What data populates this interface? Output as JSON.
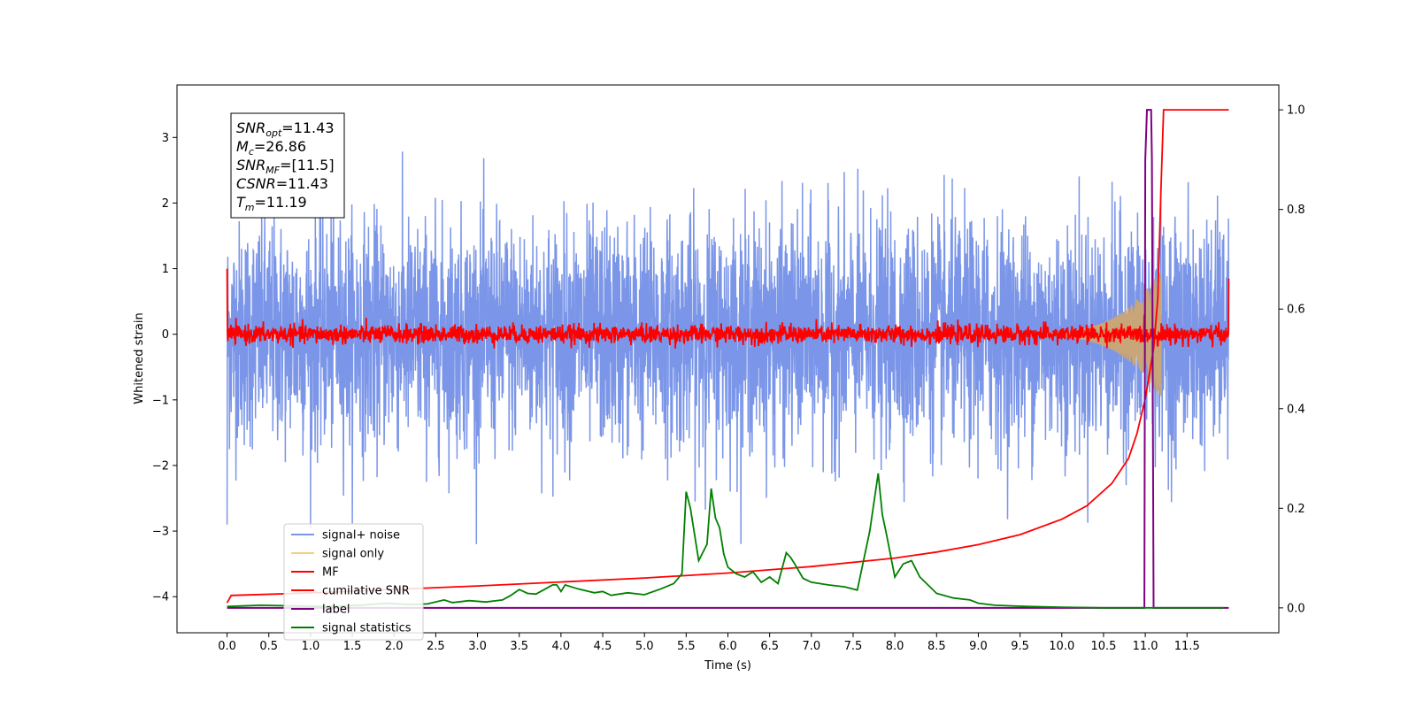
{
  "chart_data": {
    "type": "line",
    "xlabel": "Time (s)",
    "ylabel": "Whitened strain",
    "xlim": [
      -0.6,
      12.6
    ],
    "ylim": [
      -4.55,
      3.8
    ],
    "y2lim": [
      -0.05,
      1.05
    ],
    "x_ticks": [
      "0.0",
      "0.5",
      "1.0",
      "1.5",
      "2.0",
      "2.5",
      "3.0",
      "3.5",
      "4.0",
      "4.5",
      "5.0",
      "5.5",
      "6.0",
      "6.5",
      "7.0",
      "7.5",
      "8.0",
      "8.5",
      "9.0",
      "9.5",
      "10.0",
      "10.5",
      "11.0",
      "11.5"
    ],
    "y_ticks": [
      "3",
      "2",
      "1",
      "0",
      "−1",
      "−2",
      "−3",
      "−4"
    ],
    "y2_ticks": [
      "1.0",
      "0.8",
      "0.6",
      "0.4",
      "0.2",
      "0.0"
    ],
    "grid": false,
    "legend_position": "lower-left",
    "annotation": {
      "lines": [
        {
          "main": "SNR",
          "sub": "opt",
          "rest": "=11.43"
        },
        {
          "main": "M",
          "sub": "c",
          "rest": "=26.86"
        },
        {
          "main": "SNR",
          "sub": "MF",
          "rest": "=[11.5]"
        },
        {
          "main": "CSNR",
          "sub": "",
          "rest": "=11.43"
        },
        {
          "main": "T",
          "sub": "m",
          "rest": "=11.19"
        }
      ]
    },
    "series": [
      {
        "name": "signal+ noise",
        "color": "#7b96e8",
        "axis": "left",
        "x_range": [
          0.0,
          12.0
        ],
        "noise_std": 0.85
      },
      {
        "name": "signal only",
        "color": "#f5d07a",
        "axis": "left",
        "x_range": [
          0.0,
          12.0
        ],
        "envelope_peak_time": 11.19,
        "envelope_peak": 0.95
      },
      {
        "name": "MF",
        "color": "#ff0000",
        "axis": "left",
        "x_range": [
          0.0,
          12.0
        ],
        "noise_std": 0.07,
        "start_value": 1.0,
        "end_value": 0.85
      },
      {
        "name": "cumilative SNR",
        "color": "#ff0000",
        "axis": "right",
        "x": [
          0.0,
          0.05,
          1.0,
          2.0,
          3.0,
          4.0,
          5.0,
          6.0,
          7.0,
          8.0,
          8.5,
          9.0,
          9.5,
          10.0,
          10.3,
          10.6,
          10.8,
          10.9,
          11.0,
          11.1,
          11.15,
          11.19,
          11.22,
          11.3,
          11.5,
          11.7,
          12.0
        ],
        "y": [
          0.01,
          0.025,
          0.03,
          0.037,
          0.044,
          0.052,
          0.06,
          0.07,
          0.083,
          0.1,
          0.112,
          0.127,
          0.147,
          0.178,
          0.205,
          0.25,
          0.3,
          0.35,
          0.42,
          0.52,
          0.62,
          0.85,
          1.0,
          1.0,
          1.0,
          1.0,
          1.0
        ]
      },
      {
        "name": "label",
        "color": "#800080",
        "axis": "right",
        "x": [
          0.0,
          10.99,
          11.0,
          11.02,
          11.07,
          11.08,
          11.1,
          11.17,
          11.18,
          12.0
        ],
        "y": [
          0.0,
          0.0,
          0.9,
          1.0,
          1.0,
          0.9,
          0.0,
          0.0,
          0.0,
          0.0
        ]
      },
      {
        "name": "signal statistics",
        "color": "#008000",
        "axis": "left",
        "x": [
          0.0,
          0.4,
          0.8,
          1.2,
          1.6,
          1.9,
          2.2,
          2.4,
          2.6,
          2.7,
          2.9,
          3.1,
          3.3,
          3.4,
          3.5,
          3.6,
          3.7,
          3.9,
          3.95,
          4.0,
          4.05,
          4.2,
          4.4,
          4.5,
          4.6,
          4.8,
          5.0,
          5.2,
          5.35,
          5.45,
          5.5,
          5.55,
          5.65,
          5.75,
          5.8,
          5.85,
          5.9,
          5.95,
          6.0,
          6.1,
          6.2,
          6.3,
          6.4,
          6.5,
          6.6,
          6.7,
          6.75,
          6.8,
          6.9,
          7.0,
          7.2,
          7.4,
          7.55,
          7.7,
          7.8,
          7.85,
          7.9,
          8.0,
          8.1,
          8.2,
          8.3,
          8.5,
          8.7,
          8.9,
          9.0,
          9.2,
          9.6,
          10.0,
          10.5,
          11.0,
          11.5,
          11.94
        ],
        "y": [
          -4.15,
          -4.13,
          -4.14,
          -4.15,
          -4.13,
          -4.1,
          -4.12,
          -4.11,
          -4.05,
          -4.09,
          -4.06,
          -4.08,
          -4.05,
          -3.98,
          -3.89,
          -3.95,
          -3.96,
          -3.82,
          -3.82,
          -3.92,
          -3.82,
          -3.88,
          -3.94,
          -3.92,
          -3.98,
          -3.94,
          -3.97,
          -3.88,
          -3.8,
          -3.65,
          -2.4,
          -2.65,
          -3.45,
          -3.2,
          -2.35,
          -2.8,
          -2.95,
          -3.35,
          -3.55,
          -3.65,
          -3.7,
          -3.62,
          -3.78,
          -3.7,
          -3.8,
          -3.33,
          -3.4,
          -3.5,
          -3.72,
          -3.78,
          -3.82,
          -3.85,
          -3.9,
          -3.0,
          -2.12,
          -2.75,
          -3.05,
          -3.7,
          -3.5,
          -3.45,
          -3.7,
          -3.95,
          -4.02,
          -4.05,
          -4.1,
          -4.13,
          -4.15,
          -4.16,
          -4.17,
          -4.17,
          -4.17,
          -4.17
        ]
      }
    ]
  }
}
